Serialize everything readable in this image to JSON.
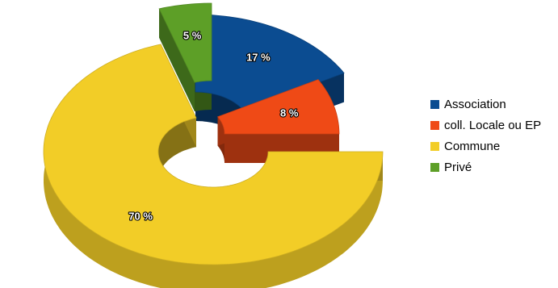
{
  "chart_data": {
    "type": "pie",
    "style": "3d-donut-exploded",
    "categories": [
      "Association",
      "coll. Locale  ou EP",
      "Commune",
      "Privé"
    ],
    "values": [
      17,
      8,
      70,
      5
    ],
    "data_labels": [
      "17 %",
      "8 %",
      "70 %",
      "5 %"
    ],
    "colors": [
      "#0b4c91",
      "#ef4a16",
      "#f2cd27",
      "#5d9f27"
    ],
    "legend_position": "right",
    "legend": [
      {
        "label": "Association",
        "color": "#0b4c91"
      },
      {
        "label": "coll. Locale  ou EP",
        "color": "#ef4a16"
      },
      {
        "label": "Commune",
        "color": "#f2cd27"
      },
      {
        "label": "Privé",
        "color": "#5d9f27"
      }
    ]
  }
}
